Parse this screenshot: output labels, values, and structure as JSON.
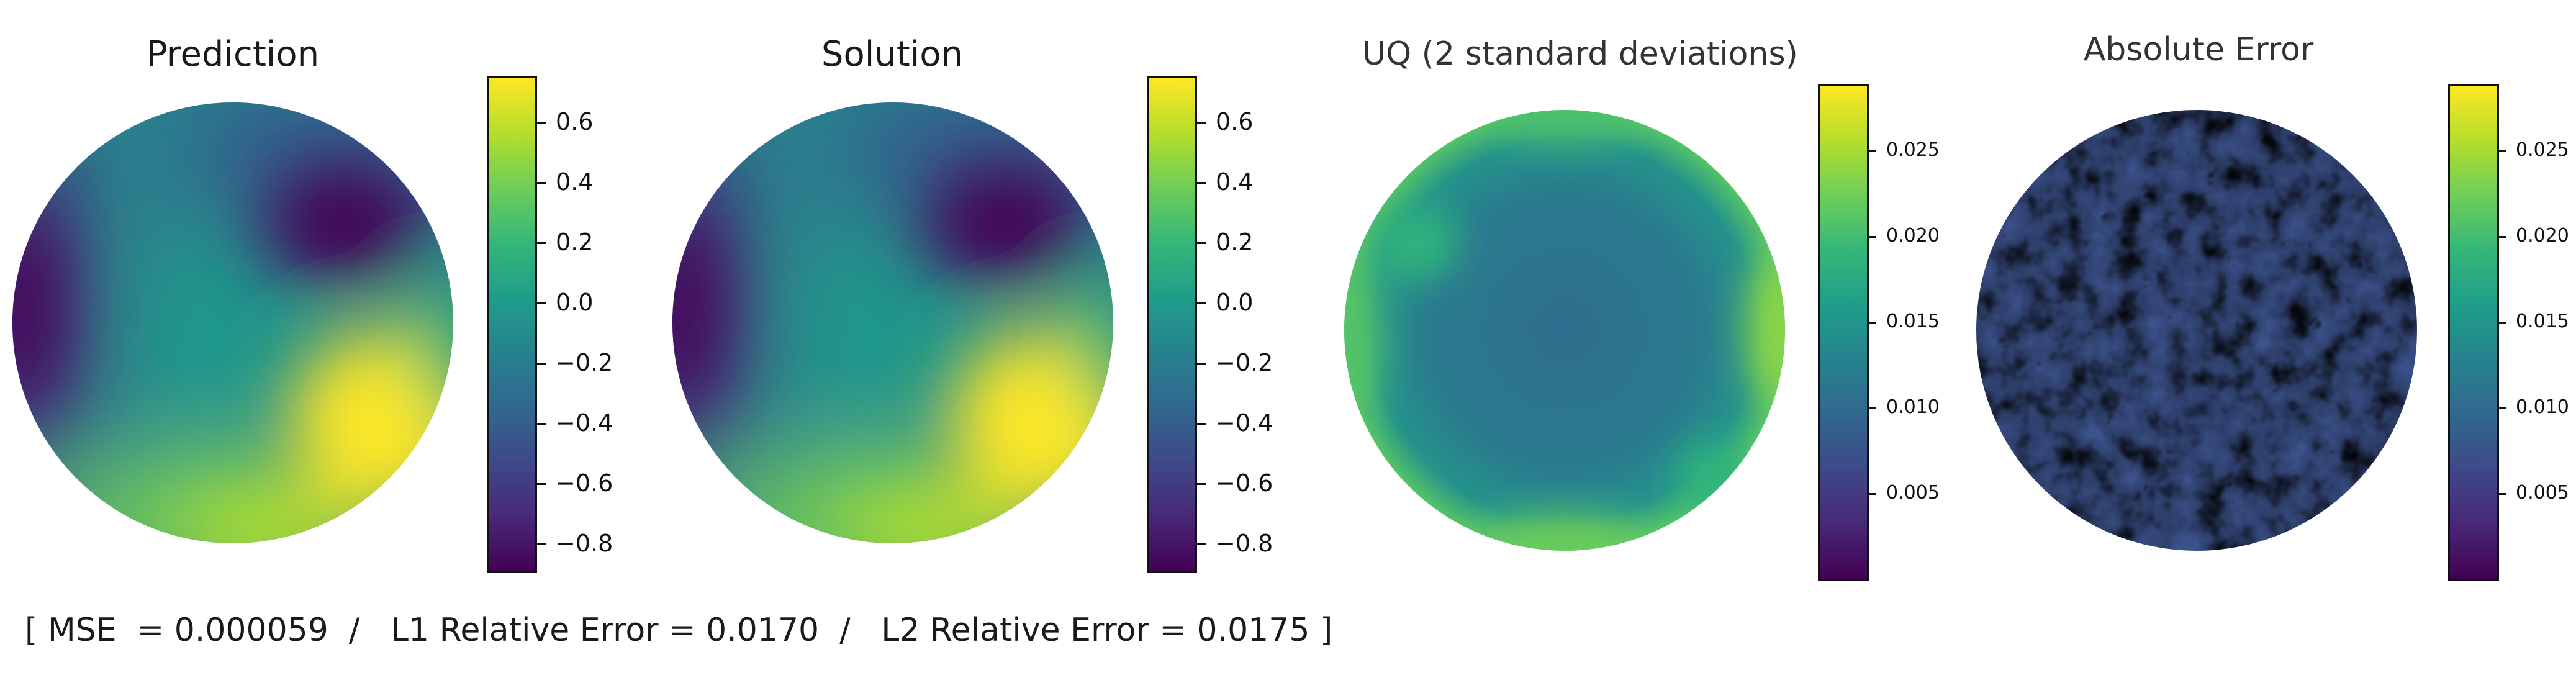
{
  "chart_data": [
    {
      "type": "heatmap",
      "title": "Prediction",
      "colormap": "viridis",
      "clim": [
        -0.9,
        0.75
      ],
      "colorbar_ticks": [
        "0.6",
        "0.4",
        "0.2",
        "0.0",
        "−0.2",
        "−0.4",
        "−0.6",
        "−0.8"
      ],
      "colorbar_tick_values": [
        0.6,
        0.4,
        0.2,
        0.0,
        -0.2,
        -0.4,
        -0.6,
        -0.8
      ]
    },
    {
      "type": "heatmap",
      "title": "Solution",
      "colormap": "viridis",
      "clim": [
        -0.9,
        0.75
      ],
      "colorbar_ticks": [
        "0.6",
        "0.4",
        "0.2",
        "0.0",
        "−0.2",
        "−0.4",
        "−0.6",
        "−0.8"
      ],
      "colorbar_tick_values": [
        0.6,
        0.4,
        0.2,
        0.0,
        -0.2,
        -0.4,
        -0.6,
        -0.8
      ]
    },
    {
      "type": "heatmap",
      "title": "UQ (2 standard deviations)",
      "colormap": "viridis",
      "clim": [
        0.0,
        0.029
      ],
      "colorbar_ticks": [
        "0.025",
        "0.020",
        "0.015",
        "0.010",
        "0.005"
      ],
      "colorbar_tick_values": [
        0.025,
        0.02,
        0.015,
        0.01,
        0.005
      ]
    },
    {
      "type": "heatmap",
      "title": "Absolute Error",
      "colormap": "viridis",
      "clim": [
        0.0,
        0.029
      ],
      "colorbar_ticks": [
        "0.025",
        "0.020",
        "0.015",
        "0.010",
        "0.005"
      ],
      "colorbar_tick_values": [
        0.025,
        0.02,
        0.015,
        0.01,
        0.005
      ]
    }
  ],
  "summary": {
    "text": "[ MSE  = 0.000059  /   L1 Relative Error = 0.0170  /   L2 Relative Error = 0.0175 ]",
    "mse": 5.9e-05,
    "l1_relative_error": 0.017,
    "l2_relative_error": 0.0175
  }
}
